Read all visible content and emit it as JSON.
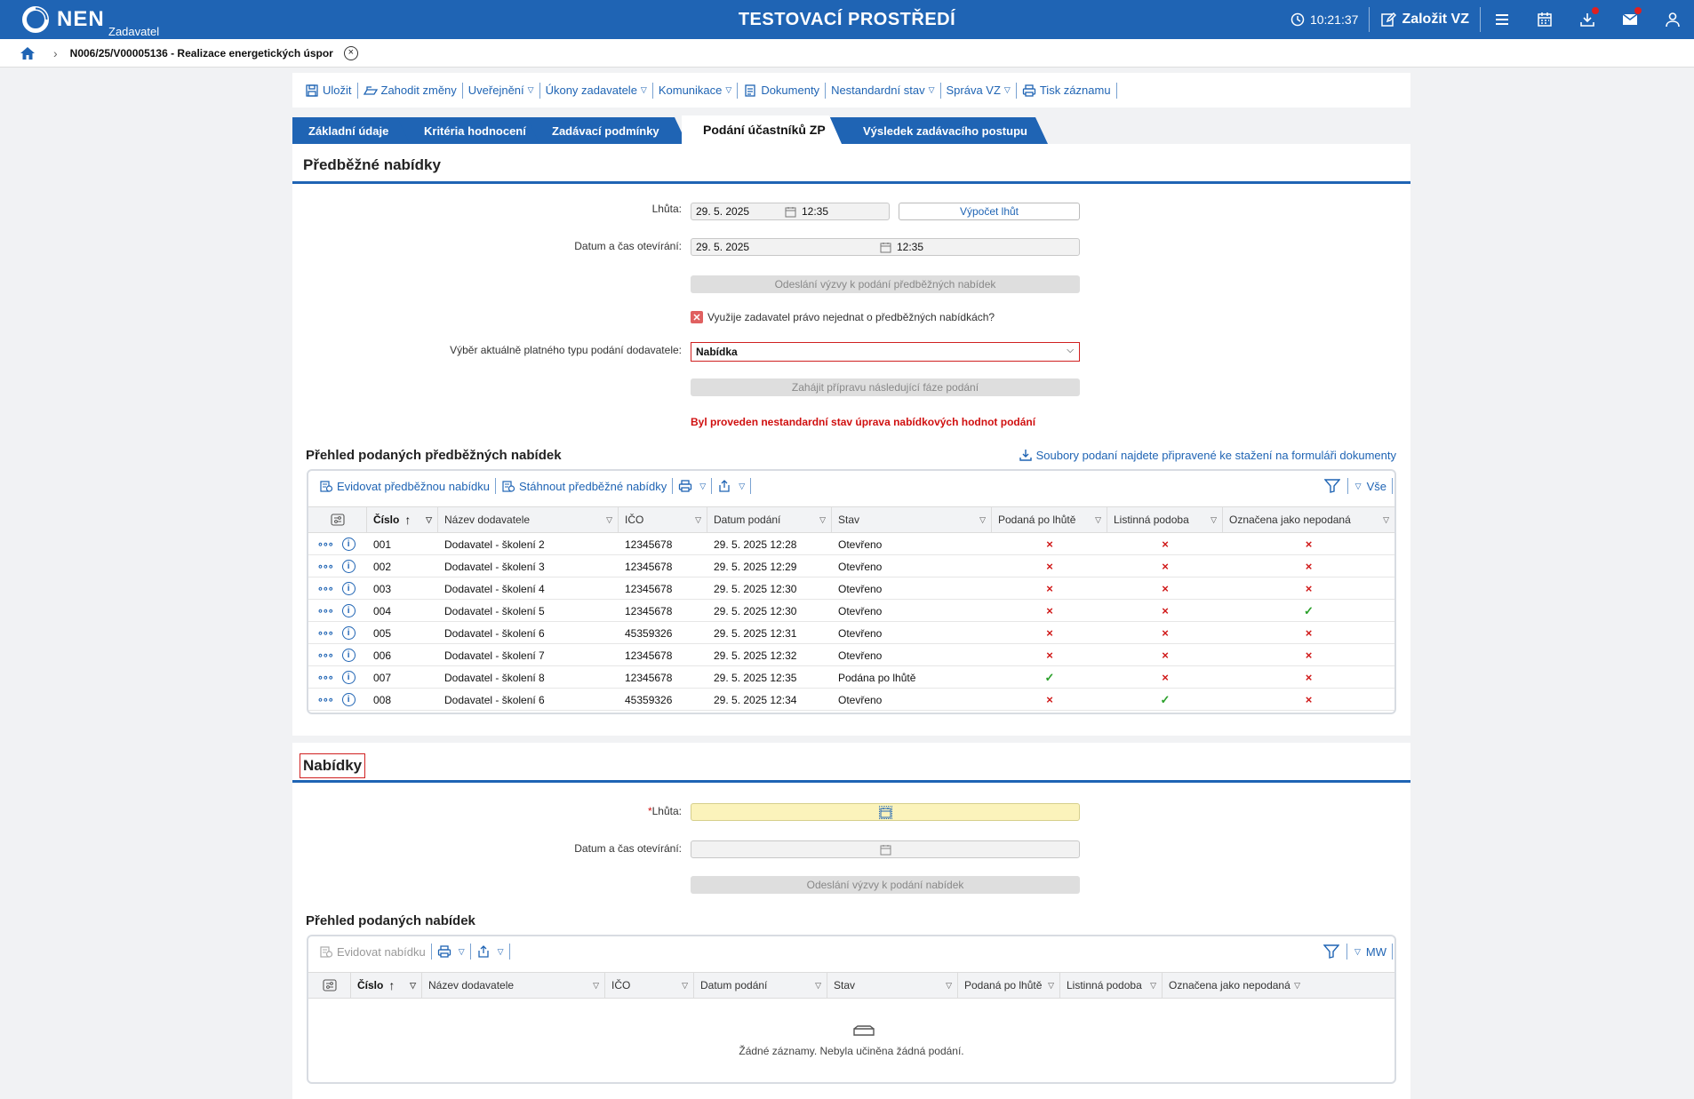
{
  "topbar": {
    "logo_text": "NEN",
    "logo_sub": "Zadavatel",
    "env_title": "TESTOVACÍ PROSTŘEDÍ",
    "clock": "10:21:37",
    "create_label": "Založit VZ",
    "icons": [
      "clock-icon",
      "edit-icon",
      "menu-icon",
      "calendar-icon",
      "download-icon",
      "mail-icon",
      "user-icon"
    ]
  },
  "breadcrumb": {
    "text": "N006/25/V00005136 - Realizace energetických úspor"
  },
  "toolbar": {
    "save": "Uložit",
    "discard": "Zahodit změny",
    "publish": "Uveřejnění",
    "acts": "Úkony zadavatele",
    "comms": "Komunikace",
    "docs": "Dokumenty",
    "nonstandard": "Nestandardní stav",
    "admin": "Správa VZ",
    "print": "Tisk záznamu"
  },
  "tabs": [
    {
      "label": "Základní údaje"
    },
    {
      "label": "Kritéria hodnocení"
    },
    {
      "label": "Zadávací podmínky"
    },
    {
      "label": "Podání účastníků ZP"
    },
    {
      "label": "Výsledek zadávacího postupu"
    }
  ],
  "prelim": {
    "title": "Předběžné nabídky",
    "deadline_label": "Lhůta:",
    "deadline_date": "29. 5. 2025",
    "deadline_time": "12:35",
    "calc_button": "Výpočet lhůt",
    "open_label": "Datum a čas otevírání:",
    "open_date": "29. 5. 2025",
    "open_time": "12:35",
    "send_button": "Odeslání výzvy k podání předběžných nabídek",
    "checkbox_label": "Využije zadavatel právo nejednat o předběžných nabídkách?",
    "select_label": "Výběr aktuálně platného typu podání dodavatele:",
    "select_value": "Nabídka",
    "prepare_button": "Zahájit přípravu následující fáze podání",
    "warning": "Byl proveden nestandardní stav úprava nabídkových hodnot podání",
    "overview_title": "Přehled podaných předběžných nabídek",
    "download_link": "Soubory podaní najdete připravené ke stažení na formuláři dokumenty",
    "grid": {
      "btn_register": "Evidovat předběžnou nabídku",
      "btn_download": "Stáhnout předběžné nabídky",
      "filter_all": "Vše",
      "columns": [
        "Číslo",
        "Název dodavatele",
        "IČO",
        "Datum podání",
        "Stav",
        "Podaná po lhůtě",
        "Listinná podoba",
        "Označena jako nepodaná"
      ],
      "rows": [
        {
          "num": "001",
          "name": "Dodavatel - školení 2",
          "ico": "12345678",
          "date": "29. 5. 2025 12:28",
          "state": "Otevřeno",
          "late": "×",
          "paper": "×",
          "notsub": "×"
        },
        {
          "num": "002",
          "name": "Dodavatel - školení 3",
          "ico": "12345678",
          "date": "29. 5. 2025 12:29",
          "state": "Otevřeno",
          "late": "×",
          "paper": "×",
          "notsub": "×"
        },
        {
          "num": "003",
          "name": "Dodavatel - školení 4",
          "ico": "12345678",
          "date": "29. 5. 2025 12:30",
          "state": "Otevřeno",
          "late": "×",
          "paper": "×",
          "notsub": "×"
        },
        {
          "num": "004",
          "name": "Dodavatel - školení 5",
          "ico": "12345678",
          "date": "29. 5. 2025 12:30",
          "state": "Otevřeno",
          "late": "×",
          "paper": "×",
          "notsub": "✓"
        },
        {
          "num": "005",
          "name": "Dodavatel - školení 6",
          "ico": "45359326",
          "date": "29. 5. 2025 12:31",
          "state": "Otevřeno",
          "late": "×",
          "paper": "×",
          "notsub": "×"
        },
        {
          "num": "006",
          "name": "Dodavatel - školení 7",
          "ico": "12345678",
          "date": "29. 5. 2025 12:32",
          "state": "Otevřeno",
          "late": "×",
          "paper": "×",
          "notsub": "×"
        },
        {
          "num": "007",
          "name": "Dodavatel - školení 8",
          "ico": "12345678",
          "date": "29. 5. 2025 12:35",
          "state": "Podána po lhůtě",
          "late": "✓",
          "paper": "×",
          "notsub": "×"
        },
        {
          "num": "008",
          "name": "Dodavatel - školení 6",
          "ico": "45359326",
          "date": "29. 5. 2025 12:34",
          "state": "Otevřeno",
          "late": "×",
          "paper": "✓",
          "notsub": "×"
        }
      ]
    }
  },
  "offers": {
    "title": "Nabídky",
    "deadline_label": "Lhůta:",
    "required_mark": "*",
    "open_label": "Datum a čas otevírání:",
    "send_button": "Odeslání výzvy k podání nabídek",
    "overview_title": "Přehled podaných nabídek",
    "grid": {
      "btn_register": "Evidovat nabídku",
      "filter_label": "MW",
      "columns": [
        "Číslo",
        "Název dodavatele",
        "IČO",
        "Datum podání",
        "Stav",
        "Podaná po lhůtě",
        "Listinná podoba",
        "Označena jako nepodaná"
      ],
      "empty_text": "Žádné záznamy. Nebyla učiněna žádná podání."
    }
  },
  "colors": {
    "brand": "#1f64b4",
    "error": "#d01010",
    "ok": "#2aa02a",
    "required_bg": "#fbf3bb"
  }
}
